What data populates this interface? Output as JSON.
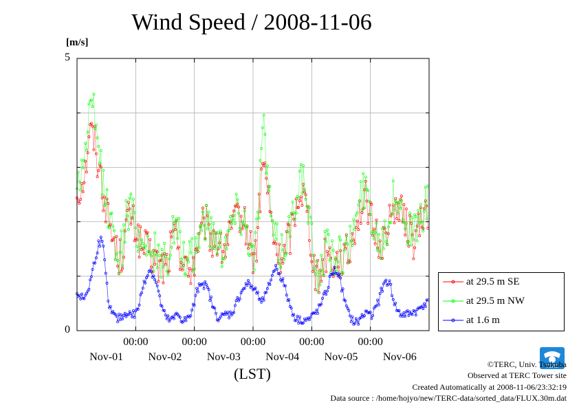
{
  "chart_data": {
    "type": "line",
    "title": "Wind Speed / 2008-11-06",
    "ylabel": "[m/s]",
    "xlabel": "(LST)",
    "ylim": [
      0,
      5
    ],
    "y_ticks": [
      "5",
      "0"
    ],
    "x_time_ticks": [
      "00:00",
      "00:00",
      "00:00",
      "00:00",
      "00:00"
    ],
    "x_date_ticks": [
      "Nov-01",
      "Nov-02",
      "Nov-03",
      "Nov-04",
      "Nov-05",
      "Nov-06"
    ],
    "x_domain_days": [
      0,
      6
    ],
    "x_tick_positions_days": [
      1,
      2,
      3,
      4,
      5
    ],
    "x_date_positions_days": [
      0.5,
      1.5,
      2.5,
      3.5,
      4.5,
      5.5
    ],
    "grid": true,
    "legend_position": "right",
    "series": [
      {
        "name": "at 29.5 m SE",
        "color": "#ff0000",
        "hourly": [
          2.5,
          2.6,
          2.7,
          2.9,
          3.1,
          3.6,
          3.7,
          3.5,
          3.3,
          3.1,
          2.8,
          2.5,
          2.3,
          2.1,
          1.9,
          1.7,
          1.5,
          1.3,
          1.3,
          1.4,
          1.8,
          2.0,
          2.2,
          2.0,
          1.9,
          1.8,
          1.6,
          1.5,
          1.5,
          1.5,
          1.5,
          1.4,
          1.3,
          1.3,
          1.2,
          1.2,
          1.2,
          1.2,
          1.3,
          1.5,
          1.7,
          1.8,
          1.7,
          1.5,
          1.3,
          1.2,
          1.1,
          1.1,
          1.2,
          1.3,
          1.5,
          1.7,
          1.8,
          1.9,
          1.9,
          1.8,
          1.7,
          1.7,
          1.7,
          1.6,
          1.5,
          1.5,
          1.6,
          1.7,
          1.8,
          1.9,
          2.0,
          2.1,
          2.1,
          2.0,
          1.9,
          1.8,
          1.6,
          1.4,
          1.3,
          1.6,
          2.2,
          2.8,
          3.1,
          2.8,
          2.4,
          2.0,
          1.7,
          1.5,
          1.4,
          1.3,
          1.4,
          1.5,
          1.7,
          1.8,
          2.0,
          2.2,
          2.4,
          2.6,
          2.6,
          2.4,
          2.2,
          1.9,
          1.5,
          1.2,
          1.0,
          1.0,
          1.1,
          1.3,
          1.4,
          1.4,
          1.3,
          1.3,
          1.3,
          1.3,
          1.3,
          1.3,
          1.3,
          1.4,
          1.5,
          1.7,
          1.9,
          2.1,
          2.2,
          2.3,
          2.4,
          2.3,
          2.2,
          2.0,
          1.8,
          1.7,
          1.6,
          1.6,
          1.7,
          1.8,
          1.9,
          2.0,
          2.2,
          2.3,
          2.3,
          2.2,
          2.1,
          2.0,
          1.9,
          1.8,
          1.7,
          1.7,
          1.8,
          1.9,
          2.0,
          2.1,
          2.2,
          2.2
        ],
        "noise": 0.35
      },
      {
        "name": "at 29.5 m NW",
        "color": "#00ff00",
        "hourly": [
          2.7,
          2.8,
          3.0,
          3.2,
          3.5,
          3.9,
          4.1,
          3.9,
          3.6,
          3.3,
          3.0,
          2.6,
          2.4,
          2.2,
          2.0,
          1.8,
          1.6,
          1.4,
          1.4,
          1.5,
          1.9,
          2.1,
          2.3,
          2.1,
          2.0,
          1.9,
          1.7,
          1.6,
          1.6,
          1.6,
          1.6,
          1.5,
          1.4,
          1.4,
          1.3,
          1.3,
          1.3,
          1.3,
          1.4,
          1.6,
          1.8,
          1.9,
          1.8,
          1.6,
          1.4,
          1.3,
          1.2,
          1.2,
          1.3,
          1.4,
          1.6,
          1.8,
          1.9,
          2.0,
          2.0,
          1.9,
          1.8,
          1.8,
          1.8,
          1.7,
          1.6,
          1.6,
          1.7,
          1.8,
          1.9,
          2.0,
          2.1,
          2.2,
          2.2,
          2.1,
          2.0,
          1.9,
          1.7,
          1.5,
          1.4,
          1.8,
          2.5,
          3.4,
          3.7,
          3.2,
          2.6,
          2.1,
          1.8,
          1.6,
          1.5,
          1.4,
          1.5,
          1.6,
          1.8,
          1.9,
          2.1,
          2.4,
          2.7,
          2.9,
          2.8,
          2.5,
          2.3,
          2.0,
          1.6,
          1.3,
          1.1,
          1.1,
          1.2,
          1.4,
          1.5,
          1.5,
          1.4,
          1.4,
          1.4,
          1.4,
          1.4,
          1.4,
          1.4,
          1.5,
          1.6,
          1.8,
          2.0,
          2.2,
          2.3,
          2.5,
          2.6,
          2.5,
          2.4,
          2.1,
          1.9,
          1.8,
          1.7,
          1.7,
          1.8,
          1.9,
          2.0,
          2.2,
          2.4,
          2.5,
          2.5,
          2.3,
          2.2,
          2.1,
          2.0,
          1.9,
          1.8,
          1.8,
          1.9,
          2.0,
          2.1,
          2.2,
          2.3,
          2.3
        ],
        "noise": 0.38
      },
      {
        "name": "at 1.6 m",
        "color": "#0000ff",
        "hourly": [
          0.7,
          0.65,
          0.6,
          0.6,
          0.7,
          0.8,
          1.0,
          1.2,
          1.4,
          1.6,
          1.65,
          1.5,
          1.0,
          0.6,
          0.4,
          0.3,
          0.25,
          0.2,
          0.25,
          0.25,
          0.3,
          0.35,
          0.3,
          0.3,
          0.3,
          0.35,
          0.5,
          0.7,
          0.9,
          1.0,
          1.1,
          1.1,
          1.0,
          0.9,
          0.7,
          0.5,
          0.35,
          0.25,
          0.2,
          0.2,
          0.2,
          0.25,
          0.3,
          0.25,
          0.2,
          0.2,
          0.2,
          0.25,
          0.35,
          0.5,
          0.7,
          0.85,
          0.9,
          0.85,
          0.8,
          0.7,
          0.55,
          0.4,
          0.3,
          0.25,
          0.25,
          0.25,
          0.3,
          0.3,
          0.3,
          0.35,
          0.45,
          0.55,
          0.65,
          0.75,
          0.8,
          0.85,
          0.85,
          0.8,
          0.75,
          0.7,
          0.65,
          0.6,
          0.6,
          0.65,
          0.8,
          0.95,
          1.1,
          1.15,
          1.1,
          1.0,
          0.9,
          0.75,
          0.6,
          0.45,
          0.35,
          0.25,
          0.2,
          0.2,
          0.2,
          0.2,
          0.2,
          0.2,
          0.25,
          0.3,
          0.35,
          0.4,
          0.5,
          0.6,
          0.7,
          0.85,
          1.0,
          1.1,
          1.1,
          1.05,
          0.9,
          0.7,
          0.5,
          0.35,
          0.25,
          0.2,
          0.15,
          0.15,
          0.2,
          0.25,
          0.3,
          0.35,
          0.35,
          0.3,
          0.35,
          0.45,
          0.55,
          0.7,
          0.85,
          0.9,
          0.9,
          0.8,
          0.6,
          0.45,
          0.35,
          0.3,
          0.3,
          0.3,
          0.3,
          0.3,
          0.35,
          0.35,
          0.35,
          0.4,
          0.45,
          0.5,
          0.5,
          0.5
        ],
        "noise": 0.08
      }
    ]
  },
  "credits": {
    "copyright": "©TERC, Univ. Tsukuba",
    "observed": "Observed at TERC Tower site",
    "created": "Created Automatically at 2008-11-06/23:32:19",
    "source": "Data source : /home/hojyo/new/TERC-data/sorted_data/FLUX.30m.dat",
    "logo_text": "TERC"
  }
}
